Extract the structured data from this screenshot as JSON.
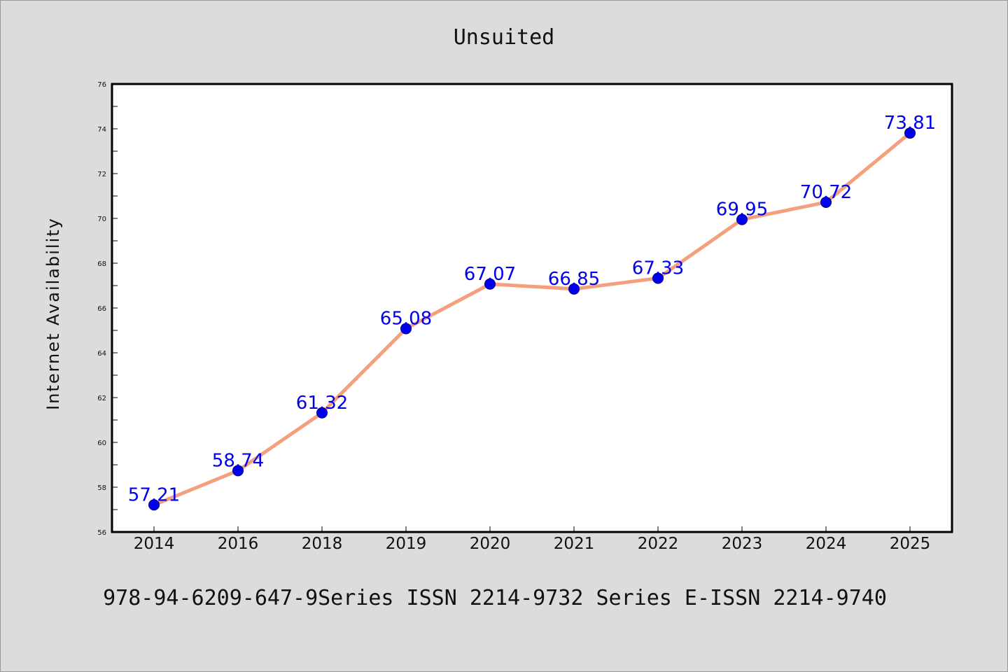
{
  "footer": "978-94-6209-647-9Series ISSN 2214-9732 Series E-ISSN 2214-9740",
  "chart_data": {
    "type": "line",
    "title": "Unsuited",
    "xlabel": "",
    "ylabel": "Internet Availability",
    "categories": [
      "2014",
      "2016",
      "2018",
      "2019",
      "2020",
      "2021",
      "2022",
      "2023",
      "2024",
      "2025"
    ],
    "values": [
      57.21,
      58.74,
      61.32,
      65.08,
      67.07,
      66.85,
      67.33,
      69.95,
      70.72,
      73.81
    ],
    "data_labels": [
      "57.21",
      "58.74",
      "61.32",
      "65.08",
      "67.07",
      "66.85",
      "67.33",
      "69.95",
      "70.72",
      "73.81"
    ],
    "ylim": [
      56,
      76
    ],
    "yticks": [
      "56",
      "58",
      "60",
      "62",
      "64",
      "66",
      "68",
      "70",
      "72",
      "74",
      "76"
    ],
    "grid": false,
    "legend": "none",
    "colors": {
      "line": "#f4a07e",
      "marker": "#0000ee",
      "marker_edge": "#000080",
      "label": "#0000ee"
    }
  }
}
